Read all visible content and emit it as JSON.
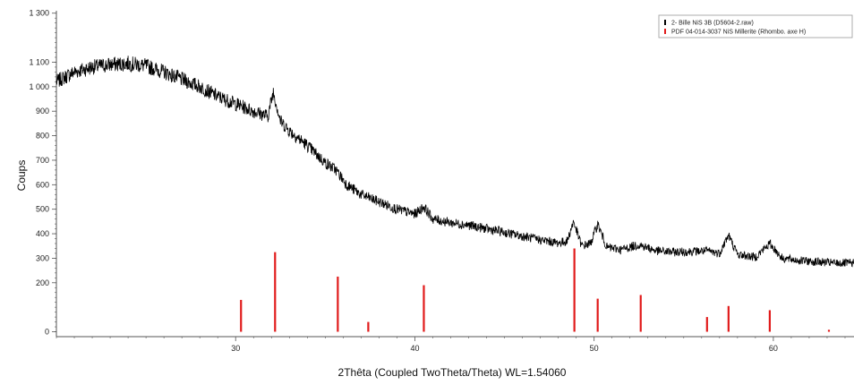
{
  "chart_data": {
    "type": "line",
    "xlabel": "2Thêta (Coupled TwoTheta/Theta) WL=1.54060",
    "ylabel": "Coups",
    "xlim": [
      20,
      64.5
    ],
    "ylim": [
      -20,
      1310
    ],
    "x_ticks": [
      30,
      40,
      50,
      60
    ],
    "y_ticks": [
      {
        "value": 0,
        "label": "0"
      },
      {
        "value": 200,
        "label": "200"
      },
      {
        "value": 300,
        "label": "300"
      },
      {
        "value": 400,
        "label": "400"
      },
      {
        "value": 500,
        "label": "500"
      },
      {
        "value": 600,
        "label": "600"
      },
      {
        "value": 700,
        "label": "700"
      },
      {
        "value": 800,
        "label": "800"
      },
      {
        "value": 900,
        "label": "900"
      },
      {
        "value": 1000,
        "label": "1 000"
      },
      {
        "value": 1100,
        "label": "1 100"
      },
      {
        "value": 1300,
        "label": "1 300"
      }
    ],
    "legend_position": "top-right",
    "series": [
      {
        "name": "2- Bille NiS 3B (D5604-2.raw)",
        "kind": "line",
        "color": "#000000",
        "x": [
          20.0,
          21.0,
          22.0,
          23.0,
          24.0,
          25.0,
          26.0,
          27.0,
          28.0,
          29.0,
          30.0,
          31.0,
          31.8,
          32.1,
          32.5,
          33.0,
          34.0,
          35.0,
          35.6,
          36.2,
          37.0,
          38.0,
          39.0,
          40.0,
          40.5,
          41.0,
          42.0,
          43.0,
          44.0,
          45.0,
          46.0,
          47.0,
          48.0,
          48.5,
          48.85,
          49.3,
          49.8,
          50.2,
          50.7,
          51.5,
          52.5,
          53.5,
          54.5,
          55.5,
          56.3,
          57.0,
          57.5,
          58.0,
          59.0,
          59.8,
          60.5,
          61.5,
          62.5,
          63.5,
          64.5
        ],
        "y": [
          1020,
          1060,
          1080,
          1090,
          1095,
          1085,
          1060,
          1030,
          1000,
          960,
          930,
          900,
          880,
          980,
          860,
          820,
          760,
          690,
          660,
          600,
          560,
          530,
          500,
          480,
          510,
          460,
          445,
          435,
          420,
          405,
          390,
          375,
          362,
          370,
          450,
          350,
          360,
          440,
          345,
          335,
          355,
          330,
          325,
          328,
          330,
          320,
          395,
          315,
          305,
          360,
          300,
          290,
          285,
          280,
          280
        ]
      },
      {
        "name": "PDF 04-014-3037 NiS Millerite (Rhombo. axe H)",
        "kind": "stick",
        "color": "#e11b1b",
        "x": [
          30.3,
          32.2,
          35.7,
          37.4,
          40.5,
          48.9,
          50.2,
          52.6,
          56.3,
          57.5,
          59.8,
          63.1
        ],
        "y": [
          130,
          325,
          225,
          40,
          190,
          340,
          135,
          150,
          60,
          105,
          88,
          8
        ]
      }
    ]
  }
}
